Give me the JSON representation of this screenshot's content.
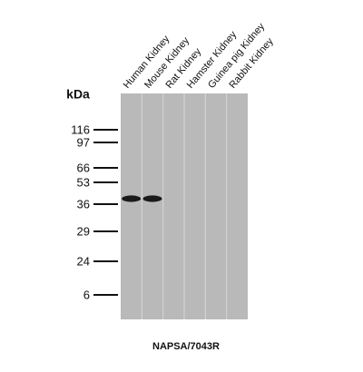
{
  "figure": {
    "lanes": [
      "Human Kidney",
      "Mouse Kidney",
      "Rat Kidney",
      "Hamster Kidney",
      "Guinea pig Kidney",
      "Rabbit Kidney"
    ],
    "unit": "kDa",
    "markers": [
      "116",
      "97",
      "66",
      "53",
      "36",
      "29",
      "24",
      "6"
    ],
    "caption": "NAPSA/7043R"
  }
}
